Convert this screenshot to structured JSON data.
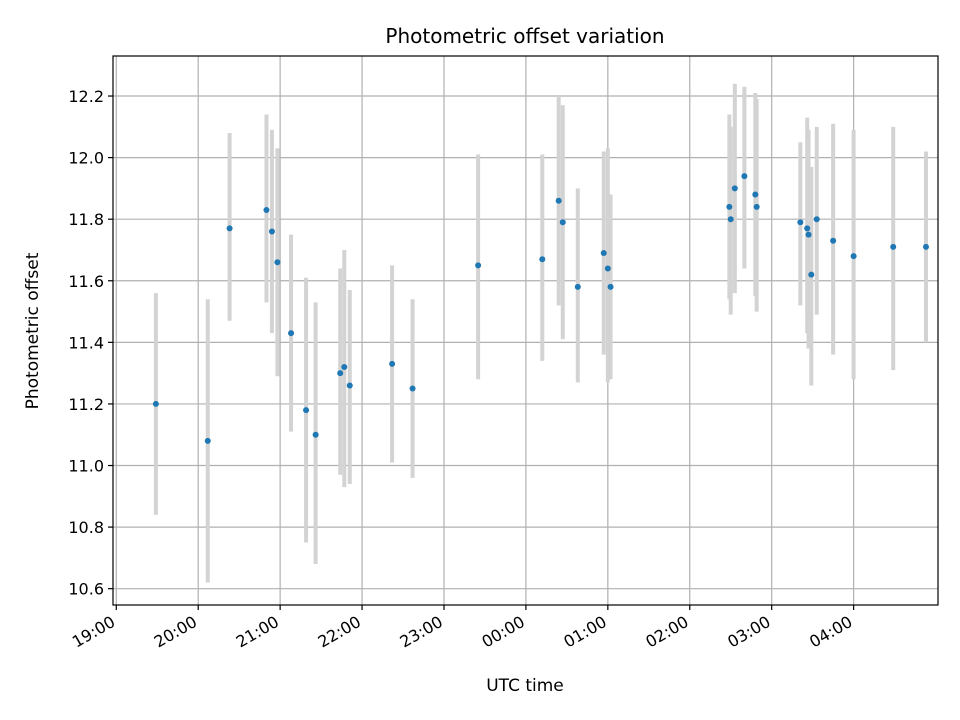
{
  "chart_data": {
    "type": "scatter",
    "title": "Photometric offset variation",
    "xlabel": "UTC time",
    "ylabel": "Photometric offset",
    "x_ticks": [
      "19:00",
      "20:00",
      "21:00",
      "22:00",
      "23:00",
      "00:00",
      "01:00",
      "02:00",
      "03:00",
      "04:00"
    ],
    "x_tick_hours": [
      19,
      20,
      21,
      22,
      23,
      24,
      25,
      26,
      27,
      28
    ],
    "xlim_hours": [
      18.96,
      29.03
    ],
    "y_ticks": [
      10.6,
      10.8,
      11.0,
      11.2,
      11.4,
      11.6,
      11.8,
      12.0,
      12.2
    ],
    "ylim": [
      10.547,
      12.33
    ],
    "grid": true,
    "colors": {
      "points": "#1f77b4",
      "errorbars": "#d3d3d3",
      "grid": "#b0b0b0"
    },
    "series": [
      {
        "points": [
          {
            "x": "19:29",
            "y": 11.2,
            "lo": 10.84,
            "hi": 11.56
          },
          {
            "x": "20:07",
            "y": 11.08,
            "lo": 10.62,
            "hi": 11.54
          },
          {
            "x": "20:23",
            "y": 11.77,
            "lo": 11.47,
            "hi": 12.08
          },
          {
            "x": "20:50",
            "y": 11.83,
            "lo": 11.53,
            "hi": 12.14
          },
          {
            "x": "20:54",
            "y": 11.76,
            "lo": 11.43,
            "hi": 12.09
          },
          {
            "x": "20:58",
            "y": 11.66,
            "lo": 11.29,
            "hi": 12.03
          },
          {
            "x": "21:08",
            "y": 11.43,
            "lo": 11.11,
            "hi": 11.75
          },
          {
            "x": "21:19",
            "y": 11.18,
            "lo": 10.75,
            "hi": 11.61
          },
          {
            "x": "21:26",
            "y": 11.1,
            "lo": 10.68,
            "hi": 11.53
          },
          {
            "x": "21:44",
            "y": 11.3,
            "lo": 10.97,
            "hi": 11.64
          },
          {
            "x": "21:47",
            "y": 11.32,
            "lo": 10.93,
            "hi": 11.7
          },
          {
            "x": "21:51",
            "y": 11.26,
            "lo": 10.94,
            "hi": 11.57
          },
          {
            "x": "22:22",
            "y": 11.33,
            "lo": 11.01,
            "hi": 11.65
          },
          {
            "x": "22:37",
            "y": 11.25,
            "lo": 10.96,
            "hi": 11.54
          },
          {
            "x": "23:25",
            "y": 11.65,
            "lo": 11.28,
            "hi": 12.01
          },
          {
            "x": "24:12",
            "y": 11.67,
            "lo": 11.34,
            "hi": 12.01
          },
          {
            "x": "24:24",
            "y": 11.86,
            "lo": 11.52,
            "hi": 12.2
          },
          {
            "x": "24:27",
            "y": 11.79,
            "lo": 11.41,
            "hi": 12.17
          },
          {
            "x": "24:38",
            "y": 11.58,
            "lo": 11.27,
            "hi": 11.9
          },
          {
            "x": "24:57",
            "y": 11.69,
            "lo": 11.36,
            "hi": 12.02
          },
          {
            "x": "25:00",
            "y": 11.64,
            "lo": 11.27,
            "hi": 12.03
          },
          {
            "x": "25:02",
            "y": 11.58,
            "lo": 11.28,
            "hi": 11.88
          },
          {
            "x": "26:29",
            "y": 11.84,
            "lo": 11.54,
            "hi": 12.14
          },
          {
            "x": "26:30",
            "y": 11.8,
            "lo": 11.49,
            "hi": 12.1
          },
          {
            "x": "26:33",
            "y": 11.9,
            "lo": 11.56,
            "hi": 12.24
          },
          {
            "x": "26:40",
            "y": 11.94,
            "lo": 11.64,
            "hi": 12.23
          },
          {
            "x": "26:48",
            "y": 11.88,
            "lo": 11.55,
            "hi": 12.21
          },
          {
            "x": "26:49",
            "y": 11.84,
            "lo": 11.5,
            "hi": 12.19
          },
          {
            "x": "27:21",
            "y": 11.79,
            "lo": 11.52,
            "hi": 12.05
          },
          {
            "x": "27:26",
            "y": 11.77,
            "lo": 11.43,
            "hi": 12.13
          },
          {
            "x": "27:27",
            "y": 11.75,
            "lo": 11.38,
            "hi": 12.09
          },
          {
            "x": "27:29",
            "y": 11.62,
            "lo": 11.26,
            "hi": 11.97
          },
          {
            "x": "27:33",
            "y": 11.8,
            "lo": 11.49,
            "hi": 12.1
          },
          {
            "x": "27:45",
            "y": 11.73,
            "lo": 11.36,
            "hi": 12.11
          },
          {
            "x": "28:00",
            "y": 11.68,
            "lo": 11.28,
            "hi": 12.09
          },
          {
            "x": "28:29",
            "y": 11.71,
            "lo": 11.31,
            "hi": 12.1
          },
          {
            "x": "28:53",
            "y": 11.71,
            "lo": 11.4,
            "hi": 12.02
          }
        ]
      }
    ]
  }
}
